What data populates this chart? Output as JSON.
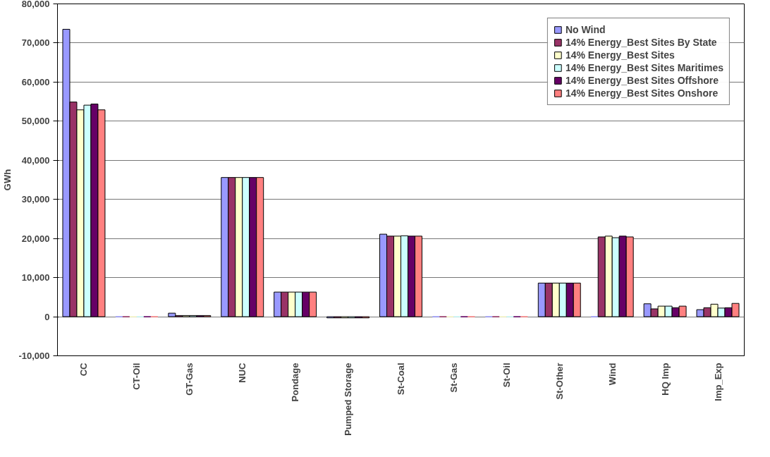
{
  "chart_data": {
    "type": "bar",
    "ylabel": "GWh",
    "categories": [
      "CC",
      "CT-Oil",
      "GT-Gas",
      "NUC",
      "Pondage",
      "Pumped Storage",
      "St-Coal",
      "St-Gas",
      "St-Oil",
      "St-Other",
      "Wind",
      "HQ Imp",
      "Imp_Exp"
    ],
    "series": [
      {
        "name": "No Wind",
        "color": "#9999ff",
        "values": [
          73500,
          0,
          900,
          35600,
          6300,
          -300,
          21100,
          0,
          0,
          8600,
          0,
          3300,
          1800
        ]
      },
      {
        "name": "14% Energy_Best Sites By State",
        "color": "#993366",
        "values": [
          54900,
          0,
          300,
          35600,
          6300,
          -300,
          20600,
          0,
          0,
          8600,
          20400,
          2000,
          2300
        ]
      },
      {
        "name": "14% Energy_Best Sites",
        "color": "#ffffcc",
        "values": [
          52900,
          0,
          300,
          35600,
          6300,
          -300,
          20600,
          0,
          0,
          8600,
          20600,
          2700,
          3200
        ]
      },
      {
        "name": "14% Energy_Best Sites Maritimes",
        "color": "#ccffff",
        "values": [
          54100,
          0,
          300,
          35600,
          6300,
          -300,
          20700,
          0,
          0,
          8600,
          20200,
          2700,
          2200
        ]
      },
      {
        "name": "14% Energy_Best Sites Offshore",
        "color": "#660066",
        "values": [
          54400,
          0,
          300,
          35600,
          6300,
          -300,
          20600,
          0,
          0,
          8600,
          20600,
          2300,
          2300
        ]
      },
      {
        "name": "14% Energy_Best Sites Onshore",
        "color": "#ff8080",
        "values": [
          52900,
          0,
          300,
          35600,
          6300,
          -300,
          20600,
          0,
          0,
          8600,
          20400,
          2700,
          3400
        ]
      }
    ],
    "ylim": [
      -10000,
      80000
    ],
    "yticks": [
      {
        "value": -10000,
        "label": "-10,000"
      },
      {
        "value": 0,
        "label": "0"
      },
      {
        "value": 10000,
        "label": "10,000"
      },
      {
        "value": 20000,
        "label": "20,000"
      },
      {
        "value": 30000,
        "label": "30,000"
      },
      {
        "value": 40000,
        "label": "40,000"
      },
      {
        "value": 50000,
        "label": "50,000"
      },
      {
        "value": 60000,
        "label": "60,000"
      },
      {
        "value": 70000,
        "label": "70,000"
      },
      {
        "value": 80000,
        "label": "80,000"
      }
    ],
    "grid": "y",
    "legend": "top right"
  }
}
